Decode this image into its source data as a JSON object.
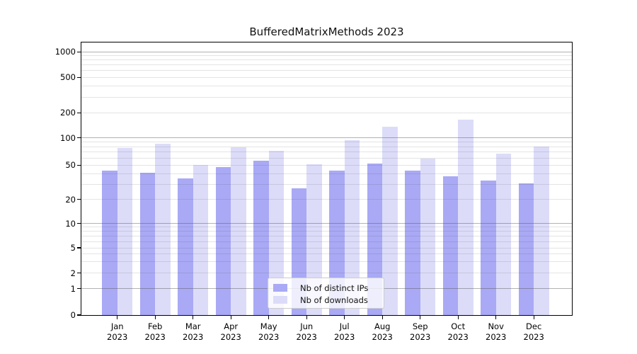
{
  "chart_data": {
    "type": "bar",
    "title": "BufferedMatrixMethods 2023",
    "xlabel": "",
    "ylabel": "",
    "year": "2023",
    "categories": [
      "Jan",
      "Feb",
      "Mar",
      "Apr",
      "May",
      "Jun",
      "Jul",
      "Aug",
      "Sep",
      "Oct",
      "Nov",
      "Dec"
    ],
    "series": [
      {
        "name": "Nb of distinct IPs",
        "color": "#a9a9f5",
        "values": [
          43,
          41,
          35,
          48,
          56,
          27,
          43,
          52,
          43,
          37,
          33,
          31
        ]
      },
      {
        "name": "Nb of downloads",
        "color": "#dcdcf9",
        "values": [
          78,
          86,
          50,
          79,
          72,
          51,
          94,
          136,
          59,
          165,
          67,
          80
        ]
      }
    ],
    "yscale": "log-like",
    "yticks": [
      0,
      1,
      2,
      5,
      10,
      20,
      50,
      100,
      200,
      500,
      1000
    ],
    "y_anchors": [
      [
        0,
        0
      ],
      [
        1,
        37.3
      ],
      [
        2,
        59.3
      ],
      [
        5,
        95
      ],
      [
        10,
        129.3
      ],
      [
        20,
        163.3
      ],
      [
        50,
        211.7
      ],
      [
        100,
        250.3
      ],
      [
        200,
        285.7
      ],
      [
        500,
        335.7
      ],
      [
        1000,
        371.7
      ]
    ],
    "grid_major_values": [
      1,
      10,
      100,
      1000
    ],
    "grid": true,
    "legend_position": "lower center",
    "legend_labels": [
      "Nb of distinct IPs",
      "Nb of downloads"
    ]
  }
}
